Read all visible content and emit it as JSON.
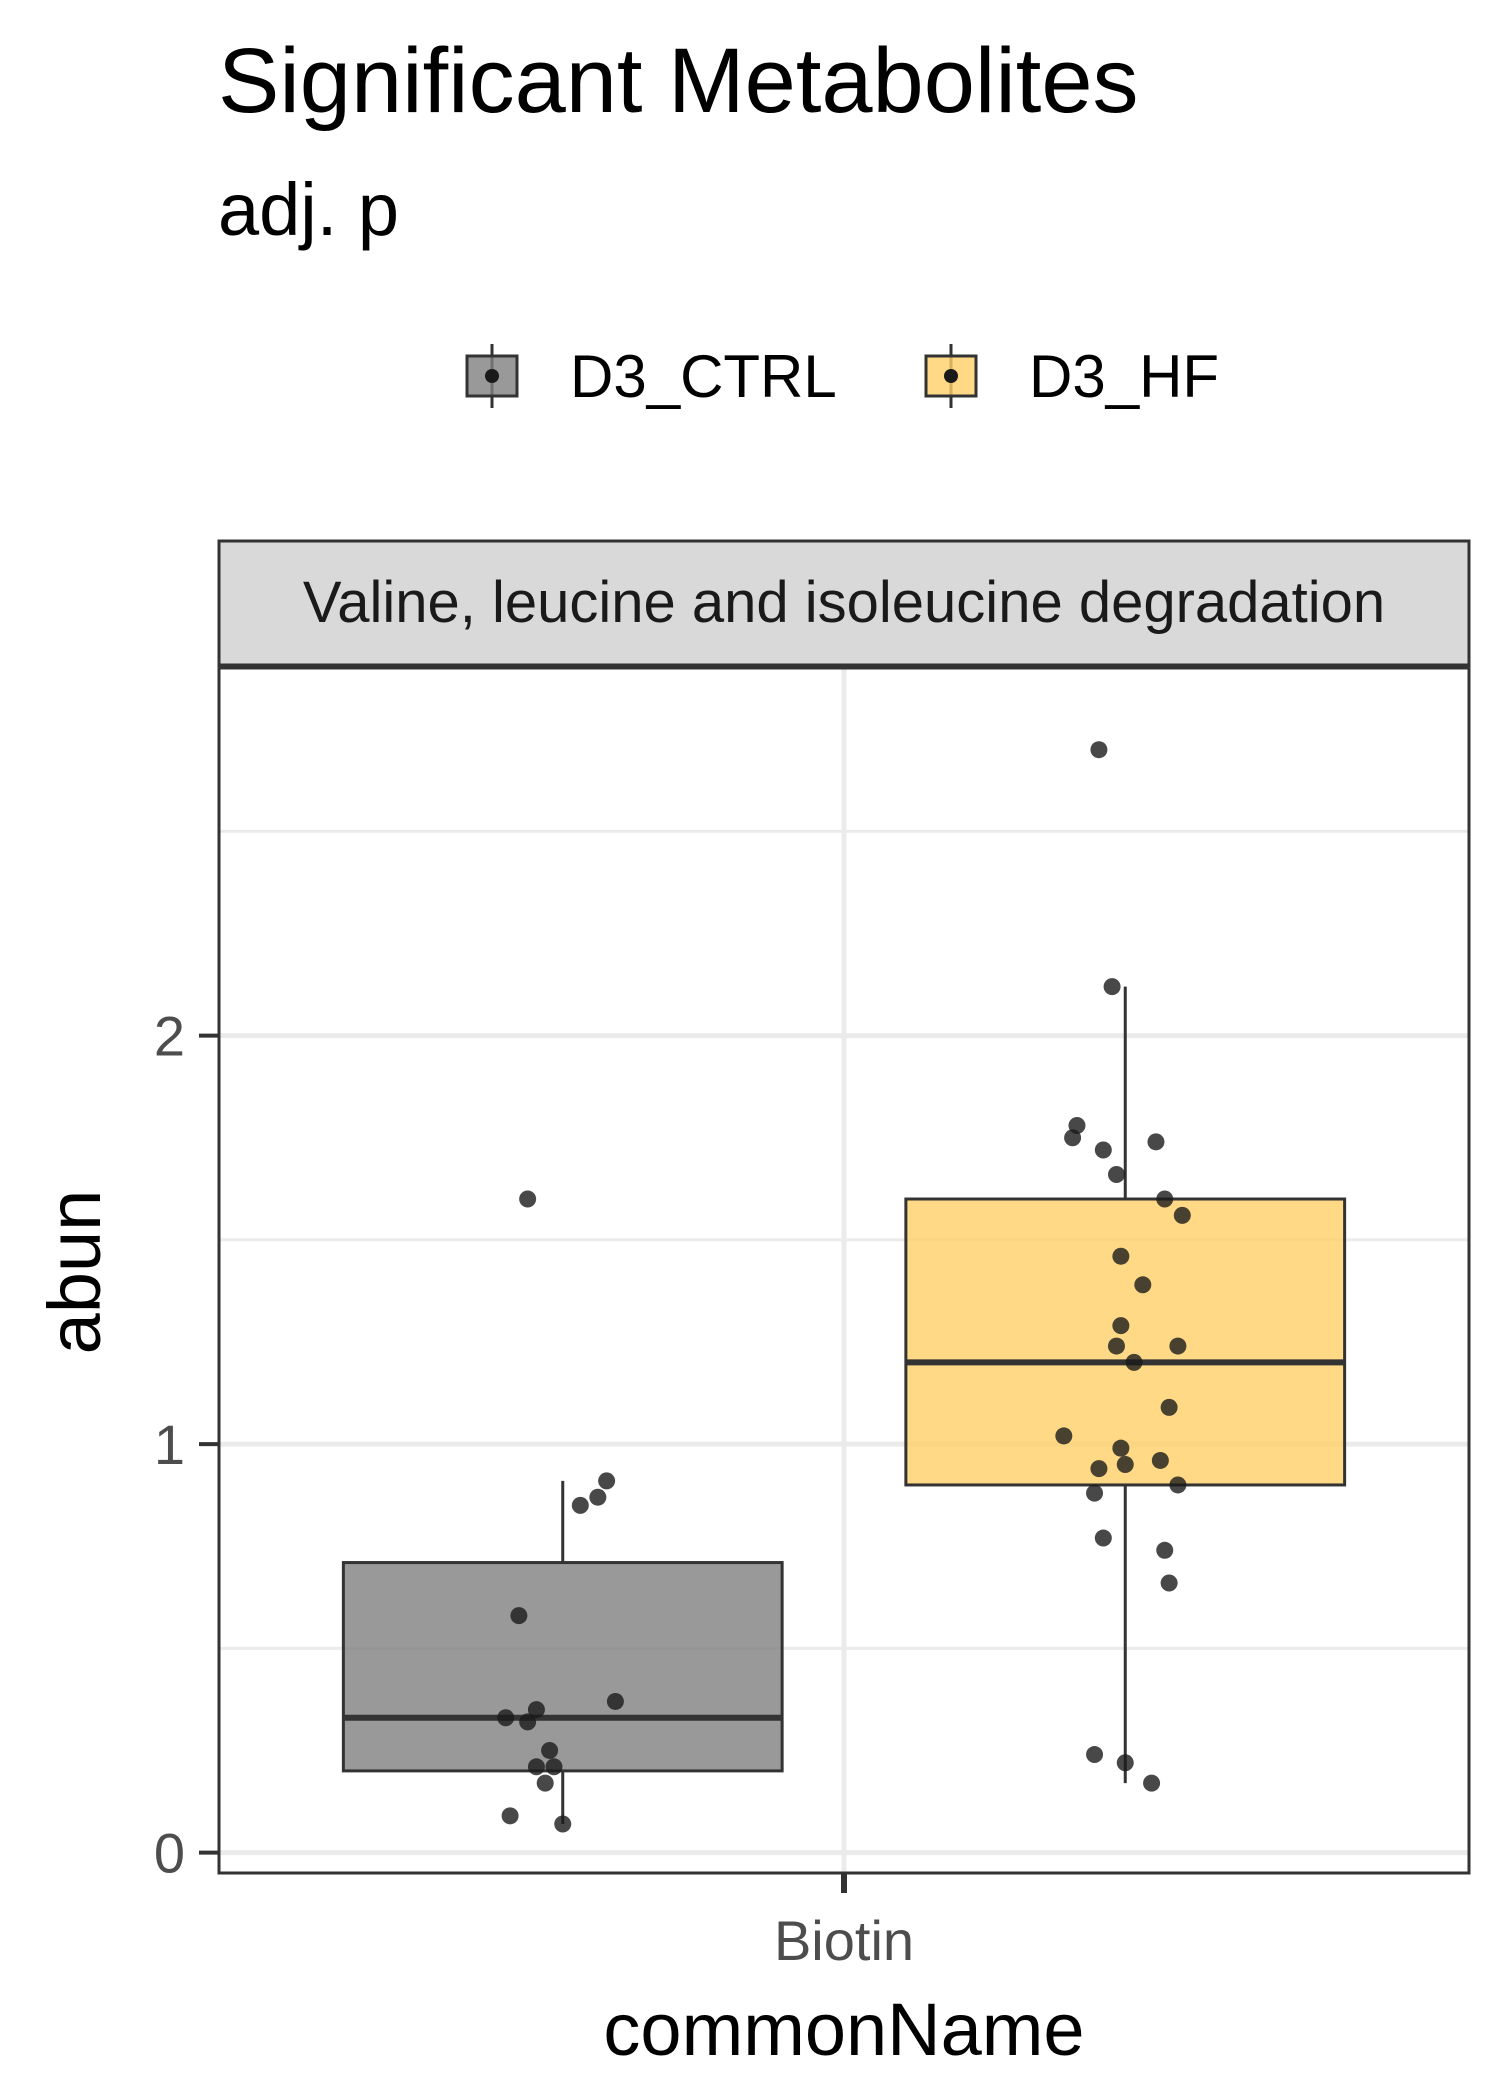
{
  "chart_data": {
    "type": "boxplot",
    "title": "Significant Metabolites",
    "subtitle": "adj. p",
    "xlabel": "commonName",
    "ylabel": "abun",
    "facet": "Valine, leucine and isoleucine degradation",
    "categories": [
      "Biotin"
    ],
    "ylim": [
      -0.05,
      2.9
    ],
    "yticks": [
      0,
      1,
      2
    ],
    "legend_position": "top",
    "grid": true,
    "series": [
      {
        "name": "D3_CTRL",
        "color": "#7f7f7f",
        "box": {
          "min": 0.07,
          "q1": 0.2,
          "median": 0.33,
          "q3": 0.71,
          "max": 0.91
        },
        "points": [
          {
            "x": -0.08,
            "y": 1.6
          },
          {
            "x": 0.1,
            "y": 0.91
          },
          {
            "x": 0.08,
            "y": 0.87
          },
          {
            "x": 0.04,
            "y": 0.85
          },
          {
            "x": -0.1,
            "y": 0.58
          },
          {
            "x": 0.12,
            "y": 0.37
          },
          {
            "x": -0.06,
            "y": 0.35
          },
          {
            "x": -0.13,
            "y": 0.33
          },
          {
            "x": -0.08,
            "y": 0.32
          },
          {
            "x": -0.03,
            "y": 0.25
          },
          {
            "x": -0.06,
            "y": 0.21
          },
          {
            "x": -0.02,
            "y": 0.21
          },
          {
            "x": -0.04,
            "y": 0.17
          },
          {
            "x": -0.12,
            "y": 0.09
          },
          {
            "x": 0.0,
            "y": 0.07
          }
        ]
      },
      {
        "name": "D3_HF",
        "color": "#ffd066",
        "box": {
          "min": 0.17,
          "q1": 0.9,
          "median": 1.2,
          "q3": 1.6,
          "max": 2.12
        },
        "points": [
          {
            "x": -0.06,
            "y": 2.7
          },
          {
            "x": -0.03,
            "y": 2.12
          },
          {
            "x": -0.11,
            "y": 1.78
          },
          {
            "x": -0.12,
            "y": 1.75
          },
          {
            "x": -0.05,
            "y": 1.72
          },
          {
            "x": 0.07,
            "y": 1.74
          },
          {
            "x": -0.02,
            "y": 1.66
          },
          {
            "x": 0.09,
            "y": 1.6
          },
          {
            "x": 0.13,
            "y": 1.56
          },
          {
            "x": -0.01,
            "y": 1.46
          },
          {
            "x": 0.04,
            "y": 1.39
          },
          {
            "x": -0.01,
            "y": 1.29
          },
          {
            "x": -0.02,
            "y": 1.24
          },
          {
            "x": 0.12,
            "y": 1.24
          },
          {
            "x": 0.02,
            "y": 1.2
          },
          {
            "x": 0.1,
            "y": 1.09
          },
          {
            "x": -0.14,
            "y": 1.02
          },
          {
            "x": -0.01,
            "y": 0.99
          },
          {
            "x": 0.08,
            "y": 0.96
          },
          {
            "x": -0.06,
            "y": 0.94
          },
          {
            "x": 0.0,
            "y": 0.95
          },
          {
            "x": 0.12,
            "y": 0.9
          },
          {
            "x": -0.07,
            "y": 0.88
          },
          {
            "x": -0.05,
            "y": 0.77
          },
          {
            "x": 0.09,
            "y": 0.74
          },
          {
            "x": 0.1,
            "y": 0.66
          },
          {
            "x": -0.07,
            "y": 0.24
          },
          {
            "x": 0.0,
            "y": 0.22
          },
          {
            "x": 0.06,
            "y": 0.17
          }
        ]
      }
    ]
  }
}
